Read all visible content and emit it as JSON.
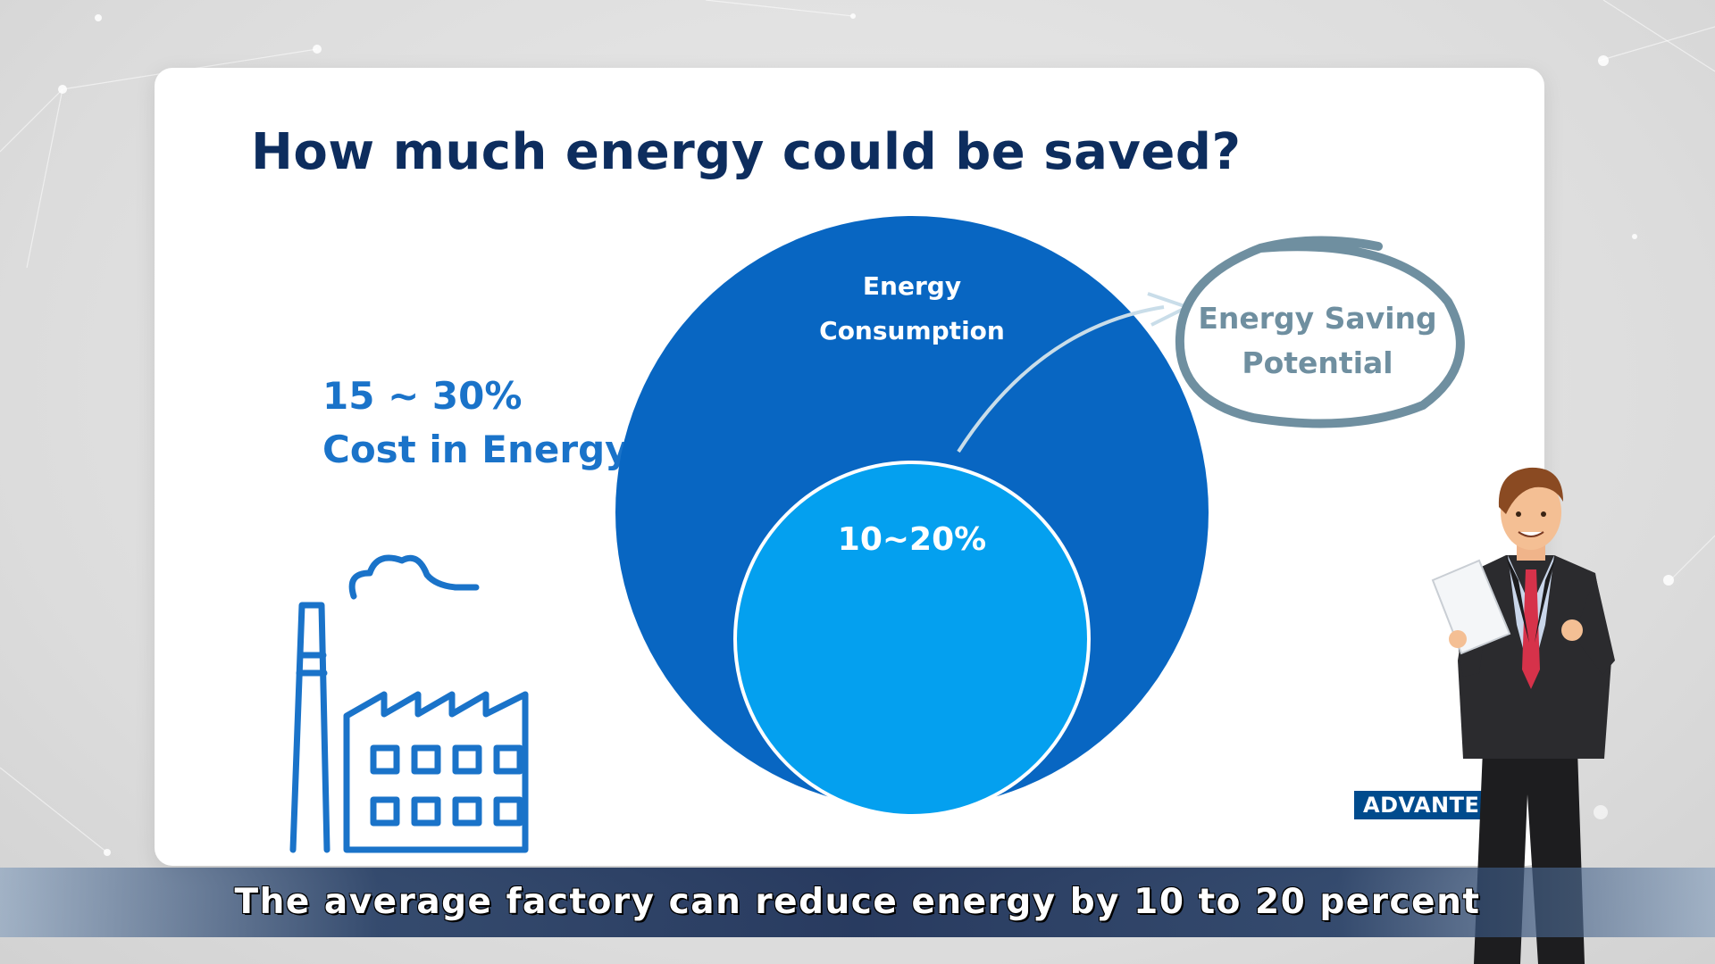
{
  "slide": {
    "title": "How much energy could be saved?",
    "stat_line1": "15 ~ 30%",
    "stat_line2": "Cost in Energy"
  },
  "diagram": {
    "outer_label_line1": "Energy",
    "outer_label_line2": "Consumption",
    "inner_label": "10~20%",
    "callout_line1": "Energy Saving",
    "callout_line2": "Potential"
  },
  "logo": "ADVANTECH",
  "subtitle": "The average factory can reduce energy by 10 to 20 percent",
  "colors": {
    "title": "#0d2d5e",
    "accent_text": "#1a73c9",
    "outer_circle": "#0866c2",
    "inner_circle": "#04a0ef",
    "callout": "#6f8fa0",
    "logo_bg": "#004b8d"
  },
  "icons": [
    "factory-icon",
    "presenter-illustration"
  ]
}
